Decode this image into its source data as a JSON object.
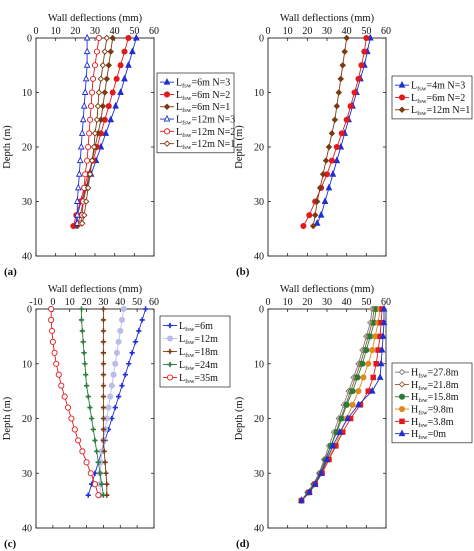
{
  "chart_data": [
    {
      "panel": "(a)",
      "type": "line",
      "xlabel": "Wall deflections (mm)",
      "ylabel": "Depth (m)",
      "xlim": [
        0,
        60
      ],
      "ylim": [
        40,
        0
      ],
      "xticks": [
        0,
        10,
        20,
        30,
        40,
        50,
        60
      ],
      "yticks": [
        0,
        10,
        20,
        30,
        40
      ],
      "x_axis_position": "top",
      "legend_position": "right",
      "series": [
        {
          "name": "L_fsw=6m N=3",
          "color": "#1f2fd1",
          "marker": "triangle-filled",
          "line": "solid",
          "x": [
            51,
            49,
            47,
            45,
            43,
            40.5,
            38,
            35.5,
            33,
            30.5,
            28,
            25.5,
            23,
            21,
            20
          ],
          "y": [
            0,
            2.5,
            5,
            7.5,
            10,
            12.5,
            15,
            17.5,
            20,
            22.5,
            25,
            27.5,
            30,
            32.5,
            34.5
          ]
        },
        {
          "name": "L_fsw=6m N=2",
          "color": "#e31a1c",
          "marker": "circle-filled",
          "line": "solid",
          "x": [
            47,
            45,
            43,
            41,
            39,
            37,
            35,
            33,
            31,
            29,
            26.5,
            24.5,
            22.5,
            20.5,
            19
          ],
          "y": [
            0,
            2.5,
            5,
            7.5,
            10,
            12.5,
            15,
            17.5,
            20,
            22.5,
            25,
            27.5,
            30,
            32.5,
            34.5
          ]
        },
        {
          "name": "L_fsw=6m N=1",
          "color": "#7a3b12",
          "marker": "diamond-filled",
          "line": "solid",
          "x": [
            39,
            38,
            37,
            36,
            35,
            34,
            33,
            31.5,
            30,
            28.5,
            27,
            25.5,
            24,
            22.5,
            21
          ],
          "y": [
            0,
            2.5,
            5,
            7.5,
            10,
            12.5,
            15,
            17.5,
            20,
            22.5,
            25,
            27.5,
            30,
            32.5,
            34.5
          ]
        },
        {
          "name": "L_fsw=12m N=3",
          "color": "#1f2fd1",
          "marker": "triangle-open",
          "line": "solid",
          "x": [
            26,
            26,
            26,
            25.5,
            25,
            24.5,
            24,
            23.5,
            23,
            22.5,
            22,
            21.5,
            21,
            21,
            21
          ],
          "y": [
            0,
            2.5,
            5,
            7.5,
            10,
            12.5,
            15,
            17.5,
            20,
            22.5,
            25,
            27.5,
            30,
            32.5,
            34
          ]
        },
        {
          "name": "L_fsw=12m N=2",
          "color": "#e31a1c",
          "marker": "circle-open",
          "line": "solid",
          "x": [
            32,
            31,
            30,
            29,
            28.5,
            28,
            27.5,
            27,
            26.5,
            26,
            25,
            24.5,
            24,
            23.5,
            23
          ],
          "y": [
            0,
            2.5,
            5,
            7.5,
            10,
            12.5,
            15,
            17.5,
            20,
            22.5,
            25,
            27.5,
            30,
            32.5,
            34
          ]
        },
        {
          "name": "L_fsw=12m N=1",
          "color": "#7a3b12",
          "marker": "diamond-open",
          "line": "solid",
          "x": [
            36,
            35,
            34,
            33,
            32,
            31.5,
            31,
            30,
            29.5,
            28.5,
            27.5,
            26.5,
            25.5,
            24.5,
            23.5
          ],
          "y": [
            0,
            2.5,
            5,
            7.5,
            10,
            12.5,
            15,
            17.5,
            20,
            22.5,
            25,
            27.5,
            30,
            32.5,
            34
          ]
        }
      ]
    },
    {
      "panel": "(b)",
      "type": "line",
      "xlabel": "Wall deflections (mm)",
      "ylabel": "Depth (m)",
      "xlim": [
        0,
        60
      ],
      "ylim": [
        40,
        0
      ],
      "xticks": [
        0,
        10,
        20,
        30,
        40,
        50,
        60
      ],
      "yticks": [
        0,
        10,
        20,
        30,
        40
      ],
      "x_axis_position": "top",
      "legend_position": "right",
      "series": [
        {
          "name": "L_fsw=4m N=3",
          "color": "#1f2fd1",
          "marker": "triangle-filled",
          "line": "solid",
          "x": [
            52,
            50.5,
            49,
            47,
            45,
            43,
            41,
            39,
            37,
            35,
            33,
            31,
            29,
            27,
            25
          ],
          "y": [
            0,
            2.5,
            5,
            7.5,
            10,
            12.5,
            15,
            17.5,
            20,
            22.5,
            25,
            27.5,
            30,
            32.5,
            34
          ]
        },
        {
          "name": "L_fsw=6m N=2",
          "color": "#e31a1c",
          "marker": "circle-filled",
          "line": "solid",
          "x": [
            50,
            49,
            47.5,
            46,
            44,
            42,
            40,
            37.5,
            35,
            32.5,
            30,
            27,
            24,
            21,
            18
          ],
          "y": [
            0,
            2.5,
            5,
            7.5,
            10,
            12.5,
            15,
            17.5,
            20,
            22.5,
            25,
            27.5,
            30,
            32.5,
            34.5
          ]
        },
        {
          "name": "L_fsw=12m N=1",
          "color": "#7a3b12",
          "marker": "diamond-filled",
          "line": "solid",
          "x": [
            40,
            39,
            38,
            37,
            36,
            35,
            34,
            32.5,
            31,
            29.5,
            28,
            26.5,
            25,
            24,
            23
          ],
          "y": [
            0,
            2.5,
            5,
            7.5,
            10,
            12.5,
            15,
            17.5,
            20,
            22.5,
            25,
            27.5,
            30,
            32.5,
            34.5
          ]
        }
      ]
    },
    {
      "panel": "(c)",
      "type": "line",
      "xlabel": "Wall deflections (mm)",
      "ylabel": "Depth (m)",
      "xlim": [
        -10,
        60
      ],
      "ylim": [
        40,
        0
      ],
      "xticks": [
        -10,
        0,
        10,
        20,
        30,
        40,
        50,
        60
      ],
      "yticks": [
        0,
        10,
        20,
        30,
        40
      ],
      "x_axis_position": "top",
      "legend_position": "right",
      "series": [
        {
          "name": "L_fsw=6m",
          "color": "#1f2fd1",
          "marker": "plus-filled",
          "line": "solid",
          "x": [
            55,
            53,
            51,
            49,
            47,
            45,
            43,
            41,
            39,
            37,
            35,
            33,
            31,
            29,
            27,
            25,
            23,
            21
          ],
          "y": [
            0,
            2,
            4,
            6,
            8,
            10,
            12,
            14,
            16,
            18,
            20,
            22,
            24,
            26,
            28,
            30,
            32,
            34
          ]
        },
        {
          "name": "L_fsw=12m",
          "color": "#b9bde8",
          "marker": "circle-filled",
          "line": "solid",
          "x": [
            42,
            41,
            40,
            39,
            38,
            37,
            36,
            35,
            34,
            33,
            32,
            31,
            30,
            29,
            28.5,
            28,
            28,
            28
          ],
          "y": [
            0,
            2,
            4,
            6,
            8,
            10,
            12,
            14,
            16,
            18,
            20,
            22,
            24,
            26,
            28,
            30,
            32,
            34
          ]
        },
        {
          "name": "L_fsw=18m",
          "color": "#7a3b12",
          "marker": "plus-filled",
          "line": "solid",
          "x": [
            30,
            30,
            30,
            30,
            30,
            30,
            30,
            30,
            30,
            30,
            30,
            30,
            30,
            30.5,
            31,
            31.5,
            32,
            32
          ],
          "y": [
            0,
            2,
            4,
            6,
            8,
            10,
            12,
            14,
            16,
            18,
            20,
            22,
            24,
            26,
            28,
            30,
            32,
            34
          ]
        },
        {
          "name": "L_fsw=24m",
          "color": "#2a7a3a",
          "marker": "plus-filled",
          "line": "solid",
          "x": [
            17,
            17,
            17.5,
            18,
            18.5,
            19,
            19.5,
            20,
            21,
            22,
            23,
            24,
            25,
            26,
            27,
            28,
            29,
            30
          ],
          "y": [
            0,
            2,
            4,
            6,
            8,
            10,
            12,
            14,
            16,
            18,
            20,
            22,
            24,
            26,
            28,
            30,
            32,
            34
          ]
        },
        {
          "name": "L_fsw=35m",
          "color": "#e31a1c",
          "marker": "circle-open",
          "line": "solid",
          "x": [
            -1,
            -1,
            -0.5,
            0,
            1,
            2,
            3.5,
            5,
            7,
            9,
            11,
            13,
            15,
            17.5,
            20,
            22.5,
            25,
            27
          ],
          "y": [
            0,
            2,
            4,
            6,
            8,
            10,
            12,
            14,
            16,
            18,
            20,
            22,
            24,
            26,
            28,
            30,
            32,
            34
          ]
        }
      ]
    },
    {
      "panel": "(d)",
      "type": "line",
      "xlabel": "Wall deflections (mm)",
      "ylabel": "Depth (m)",
      "xlim": [
        0,
        60
      ],
      "ylim": [
        40,
        0
      ],
      "xticks": [
        0,
        10,
        20,
        30,
        40,
        50,
        60
      ],
      "yticks": [
        0,
        10,
        20,
        30,
        40
      ],
      "x_axis_position": "top",
      "legend_position": "right",
      "series": [
        {
          "name": "H_fsw=27.8m",
          "color": "#7a7a7a",
          "marker": "diamond-open",
          "line": "solid",
          "x": [
            53,
            52,
            50,
            48,
            46,
            43.5,
            41,
            38.5,
            36,
            33.5,
            31,
            28.5,
            26,
            23,
            20,
            17
          ],
          "y": [
            0,
            2.5,
            5,
            7.5,
            10,
            12.5,
            15,
            17.5,
            20,
            22.5,
            25,
            27.5,
            30,
            32,
            33.5,
            35
          ]
        },
        {
          "name": "H_fsw=21.8m",
          "color": "#8c5a2b",
          "marker": "diamond-open",
          "line": "solid",
          "x": [
            54,
            53,
            51,
            49,
            47,
            44.5,
            42,
            39.5,
            37,
            34.5,
            32,
            29,
            26.5,
            23.5,
            20.5,
            17
          ],
          "y": [
            0,
            2.5,
            5,
            7.5,
            10,
            12.5,
            15,
            17.5,
            20,
            22.5,
            25,
            27.5,
            30,
            32,
            33.5,
            35
          ]
        },
        {
          "name": "H_fsw=15.8m",
          "color": "#2a7a3a",
          "marker": "circle-filled",
          "line": "solid",
          "x": [
            55,
            54,
            52,
            50,
            48,
            45.5,
            43,
            40,
            37.5,
            35,
            32,
            29.5,
            26.5,
            23.5,
            20.5,
            17
          ],
          "y": [
            0,
            2.5,
            5,
            7.5,
            10,
            12.5,
            15,
            17.5,
            20,
            22.5,
            25,
            27.5,
            30,
            32,
            33.5,
            35
          ]
        },
        {
          "name": "H_fsw=9.8m",
          "color": "#e08a1e",
          "marker": "circle-filled",
          "line": "solid",
          "x": [
            57,
            56,
            54.5,
            53,
            51,
            48.5,
            46,
            43,
            40,
            37,
            34,
            30.5,
            27,
            24,
            21,
            17
          ],
          "y": [
            0,
            2.5,
            5,
            7.5,
            10,
            12.5,
            15,
            17.5,
            20,
            22.5,
            25,
            27.5,
            30,
            32,
            33.5,
            35
          ]
        },
        {
          "name": "H_fsw=3.8m",
          "color": "#e31a1c",
          "marker": "square-filled",
          "line": "solid",
          "x": [
            58,
            57.5,
            57,
            56,
            55,
            53.5,
            51,
            47,
            42,
            38,
            34.5,
            31,
            27.5,
            24,
            21,
            17
          ],
          "y": [
            0,
            2.5,
            5,
            7.5,
            10,
            12.5,
            15,
            17.5,
            20,
            22.5,
            25,
            27.5,
            30,
            32,
            33.5,
            35
          ]
        },
        {
          "name": "H_fsw=0m",
          "color": "#1f2fd1",
          "marker": "triangle-filled",
          "line": "solid",
          "x": [
            59,
            59,
            58.5,
            58,
            57.5,
            57,
            53,
            46,
            40.5,
            36.5,
            33,
            30,
            27,
            24,
            21,
            17
          ],
          "y": [
            0,
            2.5,
            5,
            7.5,
            10,
            12.5,
            15,
            17.5,
            20,
            22.5,
            25,
            27.5,
            30,
            32,
            33.5,
            35
          ]
        }
      ]
    }
  ],
  "legends": {
    "a": [
      {
        "base": "L",
        "sub": "fsw",
        "rest": "=6m  N=3"
      },
      {
        "base": "L",
        "sub": "fsw",
        "rest": "=6m  N=2"
      },
      {
        "base": "L",
        "sub": "fsw",
        "rest": "=6m  N=1"
      },
      {
        "base": "L",
        "sub": "fsw",
        "rest": "=12m N=3"
      },
      {
        "base": "L",
        "sub": "fsw",
        "rest": "=12m N=2"
      },
      {
        "base": "L",
        "sub": "fsw",
        "rest": "=12m N=1"
      }
    ],
    "b": [
      {
        "base": "L",
        "sub": "fsw",
        "rest": "=4m  N=3"
      },
      {
        "base": "L",
        "sub": "fsw",
        "rest": "=6m  N=2"
      },
      {
        "base": "L",
        "sub": "fsw",
        "rest": "=12m N=1"
      }
    ],
    "c": [
      {
        "base": "L",
        "sub": "fsw",
        "rest": "=6m"
      },
      {
        "base": "L",
        "sub": "fsw",
        "rest": "=12m"
      },
      {
        "base": "L",
        "sub": "fsw",
        "rest": "=18m"
      },
      {
        "base": "L",
        "sub": "fsw",
        "rest": "=24m"
      },
      {
        "base": "L",
        "sub": "fsw",
        "rest": "=35m"
      }
    ],
    "d": [
      {
        "base": "H",
        "sub": "fsw",
        "rest": "=27.8m"
      },
      {
        "base": "H",
        "sub": "fsw",
        "rest": "=21.8m"
      },
      {
        "base": "H",
        "sub": "fsw",
        "rest": "=15.8m"
      },
      {
        "base": "H",
        "sub": "fsw",
        "rest": "=9.8m"
      },
      {
        "base": "H",
        "sub": "fsw",
        "rest": "=3.8m"
      },
      {
        "base": "H",
        "sub": "fsw",
        "rest": "=0m"
      }
    ]
  }
}
